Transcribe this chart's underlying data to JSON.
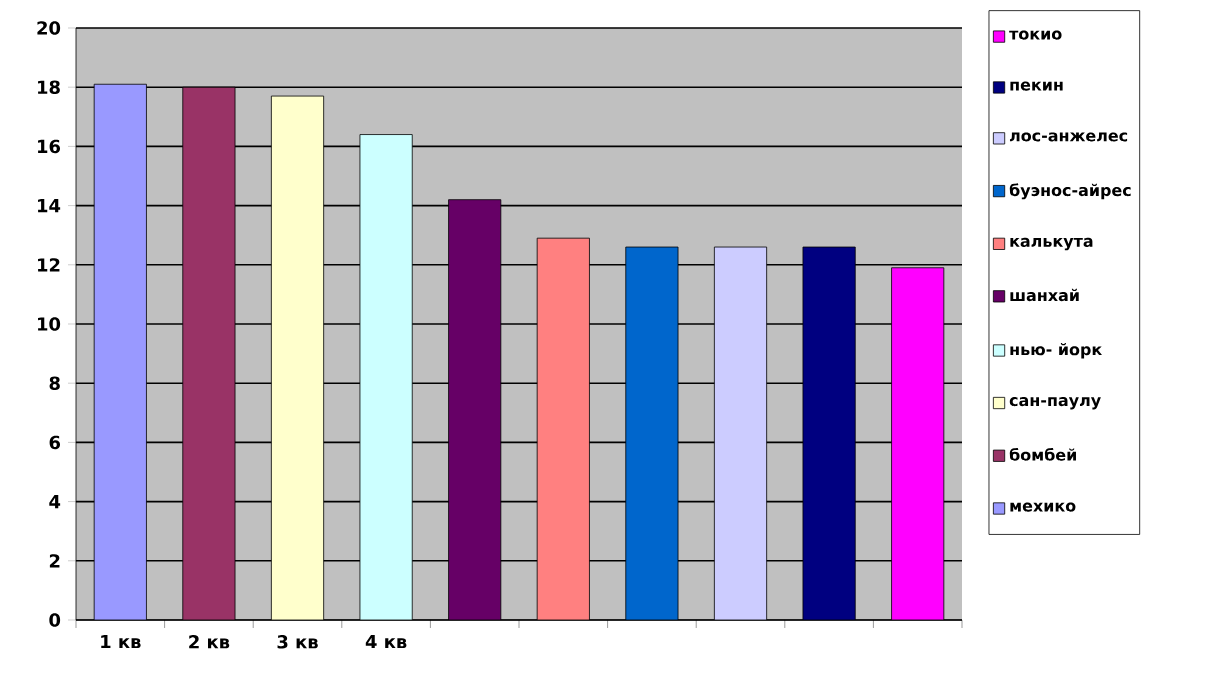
{
  "chart_data": {
    "type": "bar",
    "categories": [
      "1 кв",
      "2 кв",
      "3 кв",
      "4 кв",
      null,
      null,
      null,
      null,
      null,
      null
    ],
    "series": [
      {
        "name": "токио",
        "color": "#ff00ff",
        "values": [
          null,
          null,
          null,
          null,
          null,
          null,
          null,
          null,
          null,
          11.9
        ]
      },
      {
        "name": "пекин",
        "color": "#000080",
        "values": [
          null,
          null,
          null,
          null,
          null,
          null,
          null,
          null,
          12.6,
          null
        ]
      },
      {
        "name": "лос-анжелес",
        "color": "#ccccff",
        "values": [
          null,
          null,
          null,
          null,
          null,
          null,
          null,
          12.6,
          null,
          null
        ]
      },
      {
        "name": "буэнос-айрес",
        "color": "#0066cc",
        "values": [
          null,
          null,
          null,
          null,
          null,
          null,
          12.6,
          null,
          null,
          null
        ]
      },
      {
        "name": "калькута",
        "color": "#ff8080",
        "values": [
          null,
          null,
          null,
          null,
          null,
          12.9,
          null,
          null,
          null,
          null
        ]
      },
      {
        "name": "шанхай",
        "color": "#660066",
        "values": [
          null,
          null,
          null,
          null,
          14.2,
          null,
          null,
          null,
          null,
          null
        ]
      },
      {
        "name": "нью- йорк",
        "color": "#ccffff",
        "values": [
          null,
          null,
          null,
          16.4,
          null,
          null,
          null,
          null,
          null,
          null
        ]
      },
      {
        "name": "сан-паулу",
        "color": "#ffffcc",
        "values": [
          null,
          null,
          17.7,
          null,
          null,
          null,
          null,
          null,
          null,
          null
        ]
      },
      {
        "name": "бомбей",
        "color": "#993366",
        "values": [
          null,
          18.0,
          null,
          null,
          null,
          null,
          null,
          null,
          null,
          null
        ]
      },
      {
        "name": "мехико",
        "color": "#9999ff",
        "values": [
          18.1,
          null,
          null,
          null,
          null,
          null,
          null,
          null,
          null,
          null
        ]
      }
    ],
    "ylim": [
      0,
      20
    ],
    "yticks": [
      0,
      2,
      4,
      6,
      8,
      10,
      12,
      14,
      16,
      18,
      20
    ],
    "grid": "y",
    "legend": "right"
  }
}
